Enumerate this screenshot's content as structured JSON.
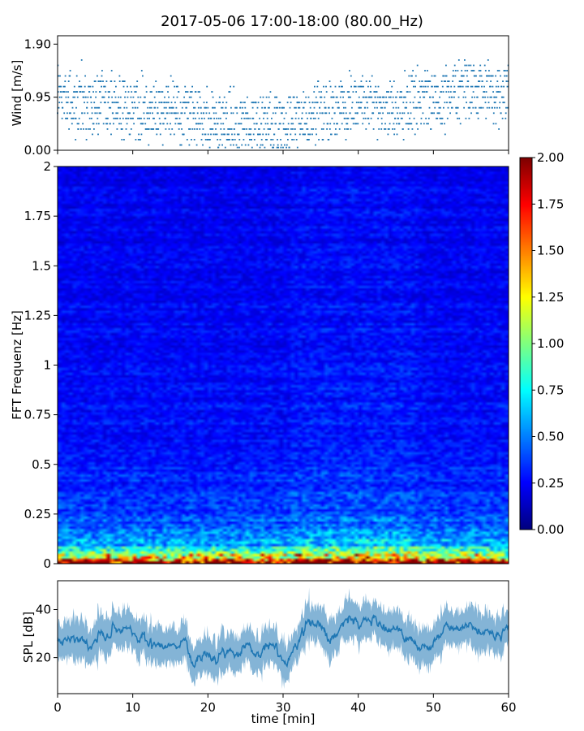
{
  "figure": {
    "title": "2017-05-06 17:00-18:00 (80.00_Hz)"
  },
  "colors": {
    "series": "#1f77b4",
    "axis": "#000000",
    "background": "#ffffff"
  },
  "chart_data": [
    {
      "type": "scatter",
      "panel": "wind",
      "title": "",
      "xlabel": "",
      "ylabel": "Wind [m/s]",
      "xlim": [
        0,
        60
      ],
      "ylim": [
        0,
        2.05
      ],
      "yticks": [
        0.0,
        0.95,
        1.9
      ],
      "ytick_labels": [
        "0.00",
        "0.95",
        "1.90"
      ],
      "xticks": [
        0,
        10,
        20,
        30,
        40,
        50,
        60
      ],
      "marker": "small dot",
      "series": [
        {
          "x_minutes_trend": [
            0,
            3,
            6,
            9,
            12,
            15,
            18,
            21,
            24,
            27,
            30,
            33,
            36,
            39,
            42,
            45,
            48,
            51,
            54,
            57,
            60
          ],
          "y_mean_trend": [
            0.95,
            0.78,
            0.8,
            0.8,
            0.72,
            0.7,
            0.62,
            0.55,
            0.5,
            0.48,
            0.5,
            0.62,
            0.72,
            0.8,
            0.8,
            0.75,
            0.85,
            0.92,
            1.05,
            1.05,
            0.95
          ]
        }
      ]
    },
    {
      "type": "heatmap",
      "panel": "spectrogram",
      "title": "",
      "xlabel": "",
      "ylabel": "FFT Frequenz [Hz]",
      "xlim": [
        0,
        60
      ],
      "ylim": [
        0,
        2
      ],
      "yticks": [
        0,
        0.25,
        0.5,
        0.75,
        1,
        1.25,
        1.5,
        1.75,
        2
      ],
      "ytick_labels": [
        "0",
        "0.25",
        "0.5",
        "0.75",
        "1",
        "1.25",
        "1.5",
        "1.75",
        "2"
      ],
      "colormap": "jet",
      "colorbar": {
        "range": [
          0,
          2
        ],
        "ticks": [
          "0.00",
          "0.25",
          "0.50",
          "0.75",
          "1.00",
          "1.25",
          "1.50",
          "1.75",
          "2.00"
        ]
      },
      "intensity_profile": {
        "frequency_hz": [
          0.0,
          0.02,
          0.05,
          0.1,
          0.2,
          0.35,
          0.6,
          1.0,
          1.5,
          2.0
        ],
        "typical_value": [
          2.0,
          1.2,
          0.9,
          0.6,
          0.42,
          0.32,
          0.27,
          0.25,
          0.23,
          0.22
        ]
      },
      "n_time_bins": 120,
      "n_freq_bins": 160
    },
    {
      "type": "line",
      "panel": "spl",
      "title": "",
      "xlabel": "time [min]",
      "ylabel": "SPL [dB]",
      "xlim": [
        0,
        60
      ],
      "ylim": [
        5,
        52
      ],
      "yticks": [
        20,
        40
      ],
      "xticks": [
        0,
        10,
        20,
        30,
        40,
        50,
        60
      ],
      "xtick_labels": [
        "0",
        "10",
        "20",
        "30",
        "40",
        "50",
        "60"
      ],
      "series": [
        {
          "x": [
            0,
            2,
            4,
            6,
            8,
            9,
            10,
            12,
            14,
            16,
            17,
            18,
            20,
            22,
            24,
            26,
            28,
            30,
            31,
            32,
            33,
            34,
            36,
            38,
            40,
            42,
            44,
            45,
            46,
            48,
            50,
            52,
            54,
            56,
            58,
            60
          ],
          "y": [
            27,
            28,
            26,
            28,
            32,
            34,
            31,
            27,
            25,
            27,
            29,
            20,
            21,
            22,
            24,
            26,
            23,
            20,
            21,
            26,
            33,
            32,
            30,
            33,
            36,
            35,
            32,
            34,
            29,
            24,
            27,
            30,
            33,
            31,
            28,
            33
          ]
        }
      ]
    }
  ]
}
